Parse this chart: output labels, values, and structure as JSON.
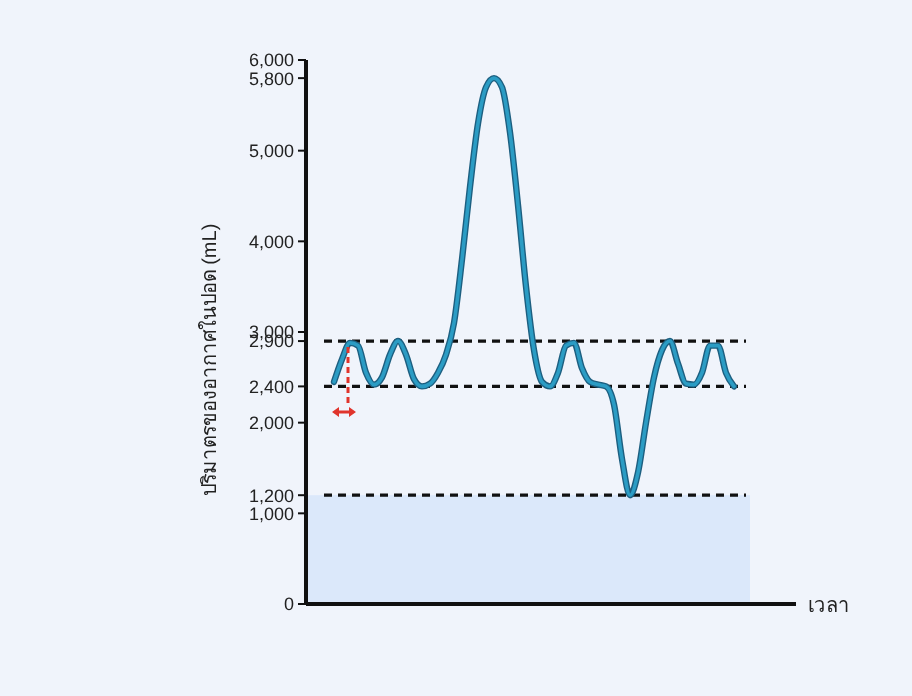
{
  "chart_data": {
    "type": "line",
    "xlabel": "เวลา",
    "ylabel": "ปริมาตรของอากาศในปอด (mL)",
    "categories": [
      null,
      null,
      null,
      null,
      null,
      null,
      null,
      null,
      null,
      null,
      null,
      null,
      null,
      null,
      null,
      null,
      null,
      null,
      null,
      null,
      null,
      null,
      null,
      null,
      null,
      null,
      null,
      null,
      null,
      null,
      null,
      null,
      null,
      null,
      null,
      null,
      null,
      null,
      null,
      null,
      null,
      null,
      null,
      null,
      null,
      null,
      null,
      null,
      null,
      null,
      null
    ],
    "series": [
      {
        "color": "#2b9cc4",
        "values": [
          2450,
          2700,
          2880,
          2850,
          2550,
          2420,
          2500,
          2750,
          2900,
          2750,
          2480,
          2400,
          2430,
          2550,
          2750,
          3100,
          3800,
          4600,
          5300,
          5700,
          5800,
          5700,
          5200,
          4400,
          3500,
          2800,
          2450,
          2400,
          2550,
          2850,
          2880,
          2600,
          2450,
          2420,
          2400,
          2200,
          1600,
          1200,
          1450,
          2000,
          2500,
          2800,
          2900,
          2650,
          2430,
          2420,
          2550,
          2850,
          2850,
          2550,
          2400
        ]
      }
    ],
    "ylim": [
      0,
      6000
    ],
    "yticks": [
      0,
      {
        "value": 1000,
        "label": "1,000"
      },
      {
        "value": 1200,
        "label": "1,200"
      },
      {
        "value": 2000,
        "label": "2,000"
      },
      {
        "value": 2400,
        "label": "2,400"
      },
      {
        "value": 2900,
        "label": "2,900"
      },
      {
        "value": 3000,
        "label": "3,000"
      },
      {
        "value": 4000,
        "label": "4,000"
      },
      {
        "value": 5000,
        "label": "5,000"
      },
      {
        "value": 5800,
        "label": "5,800"
      },
      {
        "value": 6000,
        "label": "6,000"
      }
    ],
    "ref_lines": [
      {
        "axis": "y",
        "value": 2900,
        "color": "#111111",
        "line_style": "dashed"
      },
      {
        "axis": "y",
        "value": 2400,
        "color": "#111111",
        "line_style": "dashed"
      },
      {
        "axis": "y",
        "value": 1200,
        "color": "#111111",
        "line_style": "dashed"
      }
    ],
    "bands": [
      {
        "axis": "y",
        "from": 0,
        "to": 1200,
        "color": "#dbe8fa"
      }
    ],
    "grid": false,
    "marker": "none",
    "line_style": "solid",
    "tick_labels": "y"
  }
}
